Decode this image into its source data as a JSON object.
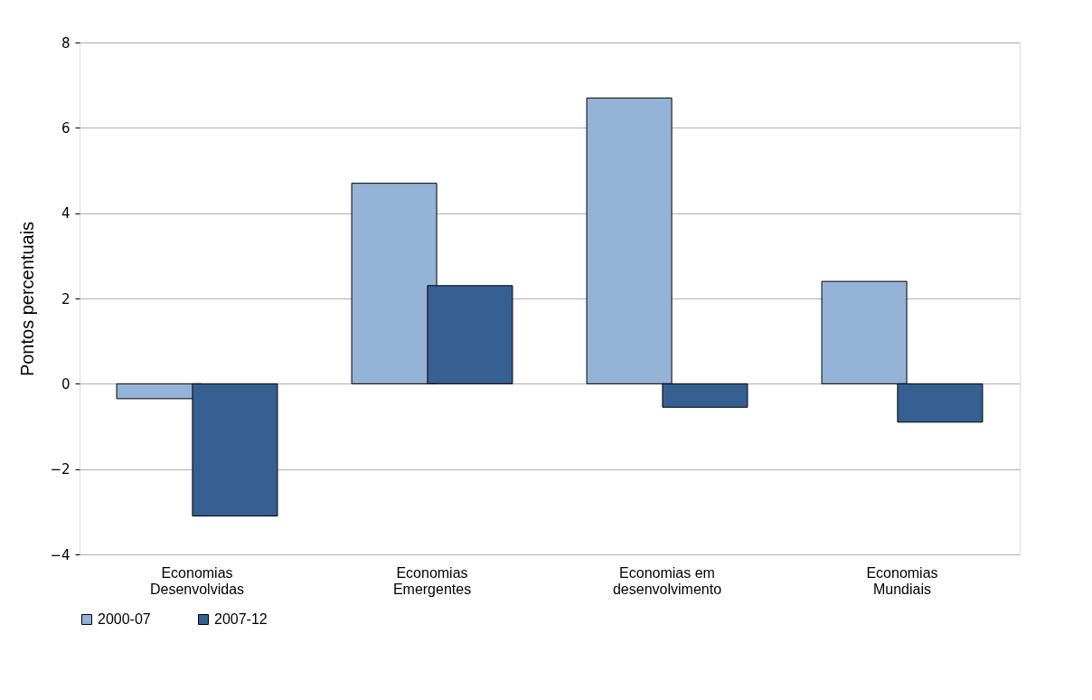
{
  "chart_data": {
    "type": "bar",
    "ylabel": "Pontos percentuais",
    "categories": [
      "Economias Desenvolvidas",
      "Economias Emergentes",
      "Economias em desenvolvimento",
      "Economias Mundiais"
    ],
    "series": [
      {
        "name": "2000-07",
        "color": "#95b3d7",
        "values": [
          -0.35,
          4.7,
          6.7,
          2.4
        ]
      },
      {
        "name": "2007-12",
        "color": "#366092",
        "values": [
          -3.1,
          2.3,
          -0.55,
          -0.9
        ]
      }
    ],
    "ylim": [
      -4,
      8
    ],
    "yticks": [
      -4,
      -2,
      0,
      2,
      4,
      6,
      8
    ],
    "grid": "y",
    "legend": "bottom"
  }
}
